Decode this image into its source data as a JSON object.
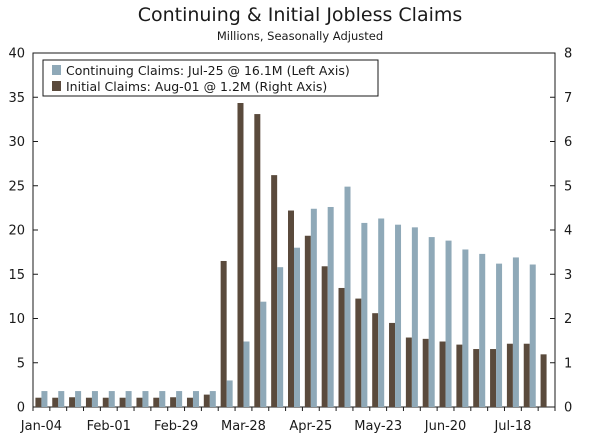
{
  "chart_data": {
    "type": "bar",
    "title": "Continuing & Initial Jobless Claims",
    "subtitle": "Millions, Seasonally Adjusted",
    "colors": {
      "continuing": "#8fa9b8",
      "initial": "#5a4a3c",
      "axis": "#1a1a1a"
    },
    "left_axis": {
      "range": [
        0,
        40
      ],
      "ticks": [
        "0",
        "5",
        "10",
        "15",
        "20",
        "25",
        "30",
        "35",
        "40"
      ]
    },
    "right_axis": {
      "range": [
        0,
        8
      ],
      "ticks": [
        "0",
        "1",
        "2",
        "3",
        "4",
        "5",
        "6",
        "7",
        "8"
      ]
    },
    "x_tick_labels": [
      "Jan-04",
      "Feb-01",
      "Feb-29",
      "Mar-28",
      "Apr-25",
      "May-23",
      "Jun-20",
      "Jul-18"
    ],
    "x_tick_label_week_index": [
      0,
      4,
      8,
      12,
      16,
      20,
      24,
      28
    ],
    "grid": false,
    "legend_position": "top-left",
    "series": [
      {
        "name": "Continuing Claims: Jul-25 @ 16.1M (Left Axis)",
        "axis": "left",
        "values": [
          1.8,
          1.8,
          1.8,
          1.8,
          1.8,
          1.8,
          1.8,
          1.8,
          1.8,
          1.8,
          1.8,
          3.0,
          7.4,
          11.9,
          15.8,
          18.0,
          22.4,
          22.6,
          24.9,
          20.8,
          21.3,
          20.6,
          20.3,
          19.2,
          18.8,
          17.8,
          17.3,
          16.2,
          16.9,
          16.1,
          null
        ]
      },
      {
        "name": "Initial Claims: Aug-01 @ 1.2M (Right Axis)",
        "axis": "right",
        "values": [
          0.21,
          0.21,
          0.22,
          0.21,
          0.21,
          0.21,
          0.21,
          0.21,
          0.22,
          0.21,
          0.28,
          3.3,
          6.87,
          6.62,
          5.24,
          4.44,
          3.87,
          3.18,
          2.69,
          2.45,
          2.12,
          1.9,
          1.57,
          1.54,
          1.48,
          1.41,
          1.31,
          1.31,
          1.43,
          1.43,
          1.19
        ]
      }
    ]
  }
}
